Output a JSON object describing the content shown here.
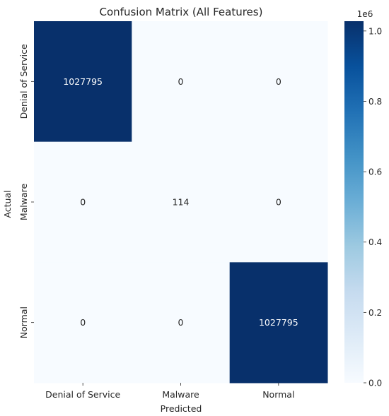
{
  "chart_data": {
    "type": "heatmap",
    "title": "Confusion Matrix (All Features)",
    "xlabel": "Predicted",
    "ylabel": "Actual",
    "x_categories": [
      "Denial of Service",
      "Malware",
      "Normal"
    ],
    "y_categories": [
      "Denial of Service",
      "Malware",
      "Normal"
    ],
    "values": [
      [
        1027795,
        0,
        0
      ],
      [
        0,
        114,
        0
      ],
      [
        0,
        0,
        1027795
      ]
    ],
    "colormap": "Blues",
    "colorbar": {
      "min": 0,
      "max": 1027795,
      "ticks": [
        0,
        0.2,
        0.4,
        0.6,
        0.8,
        1.0
      ],
      "tick_labels": [
        "0.0",
        "0.2",
        "0.4",
        "0.6",
        "0.8",
        "1.0"
      ],
      "scale_label": "1e6"
    },
    "colors": {
      "low": "#f7fbff",
      "high": "#08306b",
      "text_dark_cell": "#ffffff",
      "text_light_cell": "#262626"
    }
  }
}
